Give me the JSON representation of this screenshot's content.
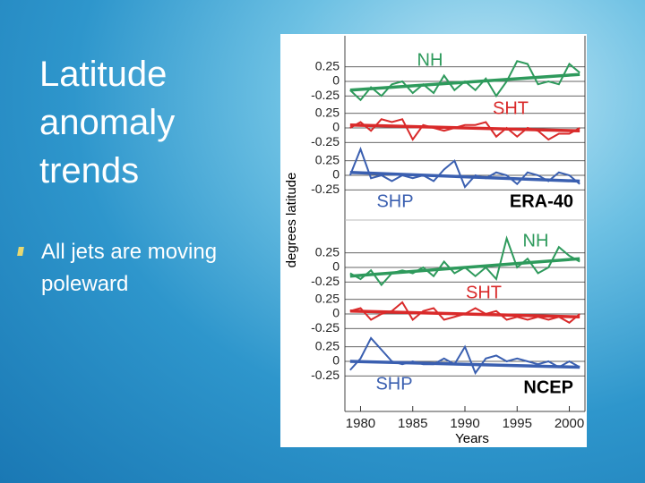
{
  "slide": {
    "title": "Latitude anomaly trends",
    "bullets": [
      "All jets are moving poleward"
    ]
  },
  "chart_data": [
    {
      "type": "line",
      "title": "ERA-40",
      "ylabel": "degrees latitude",
      "x": [
        1979,
        1980,
        1981,
        1982,
        1983,
        1984,
        1985,
        1986,
        1987,
        1988,
        1989,
        1990,
        1991,
        1992,
        1993,
        1994,
        1995,
        1996,
        1997,
        1998,
        1999,
        2000,
        2001
      ],
      "xlim": [
        1978.5,
        2001.5
      ],
      "ylim": [
        -0.4,
        0.4
      ],
      "yticks": [
        0.25,
        0,
        -0.25
      ],
      "series": [
        {
          "name": "NH",
          "color": "#2e9a5c",
          "trend": [
            -0.15,
            0.12
          ],
          "values": [
            -0.15,
            -0.32,
            -0.1,
            -0.25,
            -0.05,
            0.0,
            -0.2,
            -0.05,
            -0.2,
            0.1,
            -0.15,
            0.0,
            -0.15,
            0.05,
            -0.25,
            0.0,
            0.35,
            0.3,
            -0.05,
            0.0,
            -0.05,
            0.3,
            0.15
          ]
        },
        {
          "name": "SHT",
          "color": "#d92a2a",
          "trend": [
            0.05,
            -0.05
          ],
          "values": [
            0.0,
            0.1,
            -0.05,
            0.15,
            0.1,
            0.15,
            -0.2,
            0.05,
            0.0,
            -0.05,
            0.0,
            0.05,
            0.05,
            0.1,
            -0.15,
            0.0,
            -0.15,
            0.0,
            -0.05,
            -0.2,
            -0.1,
            -0.1,
            0.0
          ]
        },
        {
          "name": "SHP",
          "color": "#3a5fb0",
          "trend": [
            0.05,
            -0.1
          ],
          "values": [
            0.0,
            0.45,
            -0.05,
            0.0,
            -0.1,
            0.0,
            -0.05,
            0.0,
            -0.1,
            0.1,
            0.25,
            -0.2,
            0.0,
            -0.05,
            0.05,
            0.0,
            -0.15,
            0.05,
            0.0,
            -0.1,
            0.05,
            0.0,
            -0.15
          ]
        }
      ]
    },
    {
      "type": "line",
      "title": "NCEP",
      "xlabel": "Years",
      "x": [
        1979,
        1980,
        1981,
        1982,
        1983,
        1984,
        1985,
        1986,
        1987,
        1988,
        1989,
        1990,
        1991,
        1992,
        1993,
        1994,
        1995,
        1996,
        1997,
        1998,
        1999,
        2000,
        2001
      ],
      "xlim": [
        1978.5,
        2001.5
      ],
      "ylim": [
        -0.4,
        0.4
      ],
      "yticks": [
        0.25,
        0,
        -0.25
      ],
      "xticks": [
        1980,
        1985,
        1990,
        1995,
        2000
      ],
      "series": [
        {
          "name": "NH",
          "color": "#2e9a5c",
          "trend": [
            -0.15,
            0.15
          ],
          "values": [
            -0.1,
            -0.2,
            -0.05,
            -0.3,
            -0.1,
            -0.05,
            -0.1,
            0.0,
            -0.15,
            0.1,
            -0.1,
            0.0,
            -0.15,
            0.0,
            -0.2,
            0.5,
            0.0,
            0.15,
            -0.1,
            0.0,
            0.35,
            0.2,
            0.1
          ]
        },
        {
          "name": "SHT",
          "color": "#d92a2a",
          "trend": [
            0.05,
            -0.05
          ],
          "values": [
            0.05,
            0.1,
            -0.1,
            0.0,
            0.05,
            0.2,
            -0.1,
            0.05,
            0.1,
            -0.1,
            -0.05,
            0.0,
            0.1,
            0.0,
            0.05,
            -0.1,
            -0.05,
            -0.1,
            -0.05,
            -0.1,
            -0.05,
            -0.15,
            0.0
          ]
        },
        {
          "name": "SHP",
          "color": "#3a5fb0",
          "trend": [
            0.0,
            -0.1
          ],
          "values": [
            -0.15,
            0.05,
            0.4,
            0.2,
            0.0,
            -0.05,
            0.0,
            -0.05,
            -0.05,
            0.05,
            -0.05,
            0.25,
            -0.2,
            0.05,
            0.1,
            0.0,
            0.05,
            0.0,
            -0.05,
            0.0,
            -0.1,
            0.0,
            -0.1
          ]
        }
      ]
    }
  ]
}
